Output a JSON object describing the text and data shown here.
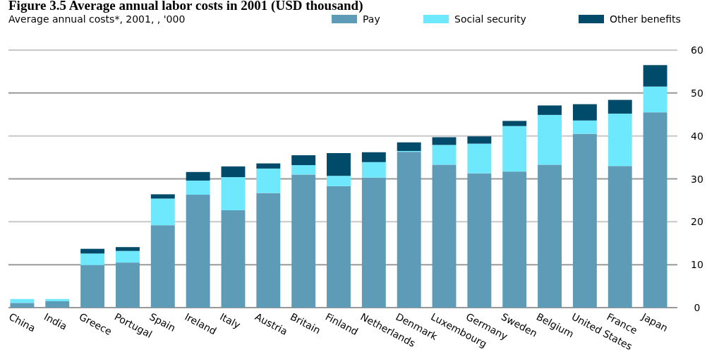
{
  "chart_data": {
    "type": "bar",
    "title": "Figure 3.5 Average annual labor costs in 2001 (USD thousand)",
    "subtitle": "Average annual costs*, 2001, , '000",
    "stacked": true,
    "legend": "top right",
    "grid": "y",
    "categories": [
      "China",
      "India",
      "Greece",
      "Portugal",
      "Spain",
      "Ireland",
      "Italy",
      "Austria",
      "Britain",
      "Finland",
      "Netherlands",
      "Denmark",
      "Luxembourg",
      "Germany",
      "Sweden",
      "Belgium",
      "United States",
      "France",
      "Japan"
    ],
    "series": [
      {
        "name": "Pay",
        "color": "#5e9bb7",
        "values": [
          1.1,
          1.5,
          9.9,
          10.5,
          19.2,
          26.3,
          22.7,
          26.7,
          31.0,
          28.3,
          30.3,
          36.3,
          33.3,
          31.3,
          31.7,
          33.3,
          40.5,
          33.0,
          45.5
        ]
      },
      {
        "name": "Social security",
        "color": "#6de8fc",
        "values": [
          0.9,
          0.5,
          2.7,
          2.7,
          6.2,
          3.3,
          7.7,
          5.7,
          2.2,
          2.4,
          3.6,
          0.2,
          4.6,
          6.9,
          10.6,
          11.6,
          3.1,
          12.2,
          6.0
        ]
      },
      {
        "name": "Other benefits",
        "color": "#004a6a",
        "values": [
          0,
          0,
          1.1,
          0.9,
          1.0,
          2.0,
          2.5,
          1.2,
          2.3,
          5.3,
          2.3,
          2.0,
          1.8,
          1.7,
          1.2,
          2.2,
          3.8,
          3.2,
          5.0
        ]
      }
    ],
    "ylim": [
      0,
      60
    ],
    "yticks": [
      0,
      10,
      20,
      30,
      40,
      50,
      60
    ]
  }
}
